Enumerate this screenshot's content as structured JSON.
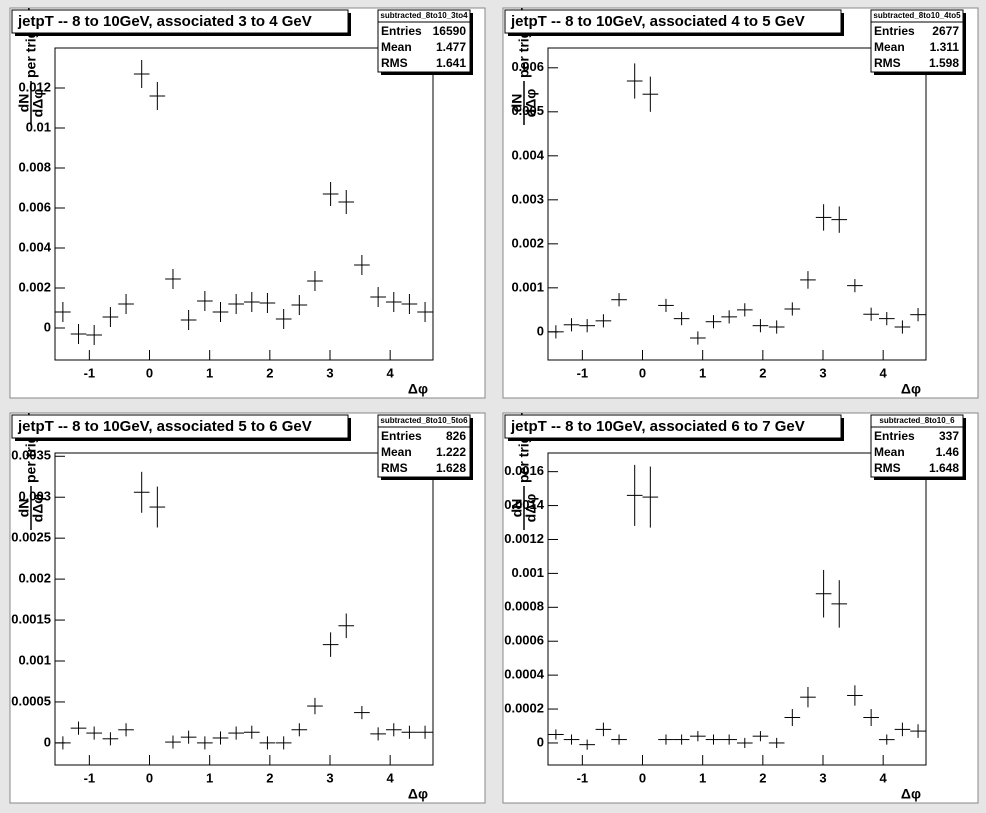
{
  "chart_data": [
    {
      "type": "errorbar",
      "title": "jetpT -- 8 to 10GeV, associated 3 to 4 GeV",
      "stats": {
        "name": "subtracted_8to10_3to4",
        "labels": [
          "Entries",
          "Mean",
          "RMS"
        ],
        "values": [
          16590,
          1.477,
          1.641
        ]
      },
      "ylabel": {
        "numerator": "dN",
        "denominator": "dΔφ",
        "suffix": "per trigger"
      },
      "xlabel": "Δφ",
      "x": [
        -1.44,
        -1.18,
        -0.92,
        -0.65,
        -0.39,
        -0.13,
        0.13,
        0.39,
        0.65,
        0.92,
        1.18,
        1.44,
        1.7,
        1.96,
        2.23,
        2.49,
        2.75,
        3.01,
        3.27,
        3.53,
        3.8,
        4.06,
        4.32,
        4.58
      ],
      "values": [
        0.0008,
        -0.0003,
        -0.00035,
        0.00055,
        0.0012,
        0.0127,
        0.0116,
        0.00245,
        0.0004,
        0.00135,
        0.0008,
        0.0012,
        0.0013,
        0.00125,
        0.00045,
        0.00115,
        0.00235,
        0.0067,
        0.0063,
        0.00315,
        0.00155,
        0.0013,
        0.0012,
        0.0008
      ],
      "errors": [
        0.0005,
        0.0005,
        0.0005,
        0.0005,
        0.0005,
        0.0007,
        0.0007,
        0.0005,
        0.0005,
        0.0005,
        0.0005,
        0.0005,
        0.0005,
        0.0005,
        0.0005,
        0.0005,
        0.0005,
        0.0006,
        0.0006,
        0.0005,
        0.0005,
        0.0005,
        0.0005,
        0.0005
      ],
      "xlim": [
        -1.571,
        4.712
      ],
      "ylim": [
        -0.0016,
        0.014
      ],
      "xticks": [
        -1,
        0,
        1,
        2,
        3,
        4
      ],
      "yticks": [
        0,
        0.002,
        0.004,
        0.006,
        0.008,
        0.01,
        0.012
      ],
      "color": "#000000"
    },
    {
      "type": "errorbar",
      "title": "jetpT -- 8 to 10GeV, associated 4 to 5 GeV",
      "stats": {
        "name": "subtracted_8to10_4to5",
        "labels": [
          "Entries",
          "Mean",
          "RMS"
        ],
        "values": [
          2677,
          1.311,
          1.598
        ]
      },
      "ylabel": {
        "numerator": "dN",
        "denominator": "dΔφ",
        "suffix": "per trigger"
      },
      "xlabel": "Δφ",
      "x": [
        -1.44,
        -1.18,
        -0.92,
        -0.65,
        -0.39,
        -0.13,
        0.13,
        0.39,
        0.65,
        0.92,
        1.18,
        1.44,
        1.7,
        1.96,
        2.23,
        2.49,
        2.75,
        3.01,
        3.27,
        3.53,
        3.8,
        4.06,
        4.32,
        4.58
      ],
      "values": [
        0,
        0.00016,
        0.00014,
        0.00025,
        0.00073,
        0.0057,
        0.0054,
        0.0006,
        0.0003,
        -0.00014,
        0.00023,
        0.00034,
        0.0005,
        0.00014,
        0.00011,
        0.00052,
        0.00118,
        0.0026,
        0.00255,
        0.00105,
        0.0004,
        0.0003,
        0.00011,
        0.00039
      ],
      "errors": [
        0.00015,
        0.00015,
        0.00015,
        0.00015,
        0.00015,
        0.0004,
        0.0004,
        0.00015,
        0.00015,
        0.00015,
        0.00015,
        0.00015,
        0.00015,
        0.00015,
        0.00015,
        0.00015,
        0.0002,
        0.0003,
        0.0003,
        0.00015,
        0.00015,
        0.00015,
        0.00015,
        0.00015
      ],
      "xlim": [
        -1.571,
        4.712
      ],
      "ylim": [
        -0.00064,
        0.00645
      ],
      "xticks": [
        -1,
        0,
        1,
        2,
        3,
        4
      ],
      "yticks": [
        0,
        0.001,
        0.002,
        0.003,
        0.004,
        0.005,
        0.006
      ],
      "color": "#000000"
    },
    {
      "type": "errorbar",
      "title": "jetpT -- 8 to 10GeV, associated 5 to 6 GeV",
      "stats": {
        "name": "subtracted_8to10_5to6",
        "labels": [
          "Entries",
          "Mean",
          "RMS"
        ],
        "values": [
          826,
          1.222,
          1.628
        ]
      },
      "ylabel": {
        "numerator": "dN",
        "denominator": "dΔφ",
        "suffix": "per trigger"
      },
      "xlabel": "Δφ",
      "x": [
        -1.44,
        -1.18,
        -0.92,
        -0.65,
        -0.39,
        -0.13,
        0.13,
        0.39,
        0.65,
        0.92,
        1.18,
        1.44,
        1.7,
        1.96,
        2.23,
        2.49,
        2.75,
        3.01,
        3.27,
        3.53,
        3.8,
        4.06,
        4.32,
        4.58
      ],
      "values": [
        0,
        0.00018,
        0.00012,
        5e-05,
        0.00016,
        0.00306,
        0.00288,
        1e-05,
        7e-05,
        0,
        6e-05,
        0.00012,
        0.00013,
        0,
        0,
        0.00016,
        0.00045,
        0.0012,
        0.00143,
        0.00037,
        0.00011,
        0.00016,
        0.00013,
        0.00013
      ],
      "errors": [
        8e-05,
        8e-05,
        8e-05,
        8e-05,
        8e-05,
        0.00025,
        0.00025,
        8e-05,
        8e-05,
        8e-05,
        8e-05,
        8e-05,
        8e-05,
        8e-05,
        8e-05,
        8e-05,
        0.0001,
        0.00015,
        0.00015,
        8e-05,
        8e-05,
        8e-05,
        8e-05,
        8e-05
      ],
      "xlim": [
        -1.571,
        4.712
      ],
      "ylim": [
        -0.00027,
        0.00354
      ],
      "xticks": [
        -1,
        0,
        1,
        2,
        3,
        4
      ],
      "yticks": [
        0,
        0.0005,
        0.001,
        0.0015,
        0.002,
        0.0025,
        0.003,
        0.0035
      ],
      "color": "#000000"
    },
    {
      "type": "errorbar",
      "title": "jetpT -- 8 to 10GeV, associated 6 to 7 GeV",
      "stats": {
        "name": "subtracted_8to10_6",
        "labels": [
          "Entries",
          "Mean",
          "RMS"
        ],
        "values": [
          337,
          1.46,
          1.648
        ]
      },
      "ylabel": {
        "numerator": "dN",
        "denominator": "dΔφ",
        "suffix": "per trigger"
      },
      "xlabel": "Δφ",
      "x": [
        -1.44,
        -1.18,
        -0.92,
        -0.65,
        -0.39,
        -0.13,
        0.13,
        0.39,
        0.65,
        0.92,
        1.18,
        1.44,
        1.7,
        1.96,
        2.23,
        2.49,
        2.75,
        3.01,
        3.27,
        3.53,
        3.8,
        4.06,
        4.32,
        4.58
      ],
      "values": [
        5e-05,
        2e-05,
        -1e-05,
        8e-05,
        2e-05,
        0.00146,
        0.00145,
        2e-05,
        2e-05,
        4e-05,
        2e-05,
        2e-05,
        0,
        4e-05,
        0,
        0.00015,
        0.00027,
        0.00088,
        0.00082,
        0.00028,
        0.00015,
        2e-05,
        8e-05,
        7e-05
      ],
      "errors": [
        3e-05,
        3e-05,
        3e-05,
        4e-05,
        3e-05,
        0.00018,
        0.00018,
        3e-05,
        3e-05,
        3e-05,
        3e-05,
        3e-05,
        3e-05,
        3e-05,
        3e-05,
        5e-05,
        6e-05,
        0.00014,
        0.00014,
        6e-05,
        5e-05,
        3e-05,
        4e-05,
        4e-05
      ],
      "xlim": [
        -1.571,
        4.712
      ],
      "ylim": [
        -0.00013,
        0.00171
      ],
      "xticks": [
        -1,
        0,
        1,
        2,
        3,
        4
      ],
      "yticks": [
        0,
        0.0002,
        0.0004,
        0.0006,
        0.0008,
        0.001,
        0.0012,
        0.0014,
        0.0016
      ],
      "color": "#000000"
    }
  ]
}
